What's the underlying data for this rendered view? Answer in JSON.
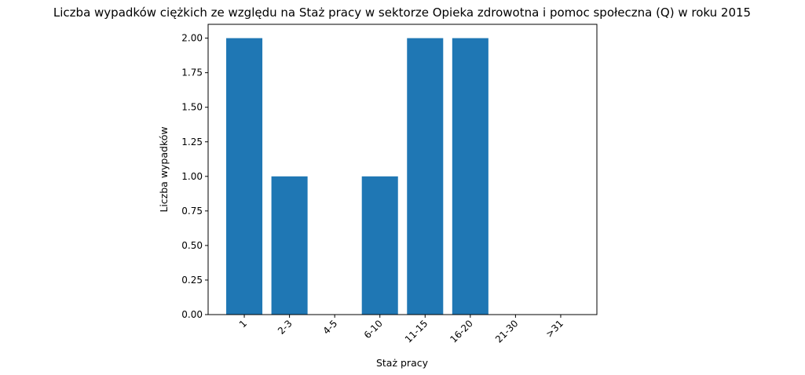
{
  "chart_data": {
    "type": "bar",
    "title": "Liczba wypadków ciężkich ze względu na Staż pracy w sektorze Opieka zdrowotna i pomoc społeczna  (Q)   w roku 2015",
    "xlabel": "Staż pracy",
    "ylabel": "Liczba wypadków",
    "categories": [
      "1",
      "2-3",
      "4-5",
      "6-10",
      "11-15",
      "16-20",
      "21-30",
      ">31"
    ],
    "values": [
      2,
      1,
      0,
      1,
      2,
      2,
      0,
      0
    ],
    "ylim": [
      0,
      2.1
    ],
    "yticks": [
      "0.00",
      "0.25",
      "0.50",
      "0.75",
      "1.00",
      "1.25",
      "1.50",
      "1.75",
      "2.00"
    ],
    "bar_color": "#1f77b4",
    "grid": false,
    "xtick_rotation": 45
  }
}
